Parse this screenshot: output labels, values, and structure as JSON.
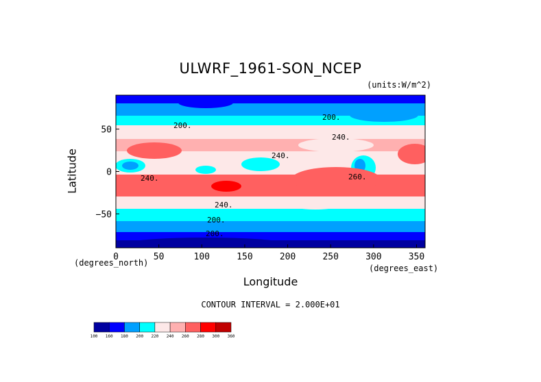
{
  "title": "ULWRF_1961-SON_NCEP",
  "units": "(units:W/m^2)",
  "xlabel": "Longitude",
  "ylabel": "Latitude",
  "x_unit": "(degrees_east)",
  "y_unit": "(degrees_north)",
  "contour_interval": "CONTOUR INTERVAL = 2.000E+01",
  "x_ticks": [
    "0",
    "50",
    "100",
    "150",
    "200",
    "250",
    "300",
    "350"
  ],
  "y_ticks": [
    "50",
    "0",
    "−50"
  ],
  "contour_labels": [
    "200.",
    "200.",
    "240.",
    "240.",
    "240.",
    "260.",
    "240.",
    "200.",
    "200."
  ],
  "chart_data": {
    "type": "heatmap",
    "title": "ULWRF_1961-SON_NCEP",
    "xlabel": "Longitude",
    "ylabel": "Latitude",
    "xlim": [
      0,
      360
    ],
    "ylim": [
      -90,
      90
    ],
    "x_ticks": [
      0,
      50,
      100,
      150,
      200,
      250,
      300,
      350
    ],
    "y_ticks": [
      50,
      0,
      -50
    ],
    "colorbar": {
      "levels": [
        "100",
        "160",
        "180",
        "200",
        "220",
        "240",
        "260",
        "280",
        "300",
        "360"
      ],
      "colors": [
        "#0000a0",
        "#0000ff",
        "#00a0ff",
        "#00ffff",
        "#fde8e8",
        "#ffb0b0",
        "#ff6060",
        "#ff0000",
        "#c00000"
      ]
    },
    "latitude_bands": [
      {
        "lat": [
          60,
          90
        ],
        "value": 190
      },
      {
        "lat": [
          45,
          60
        ],
        "value": 215
      },
      {
        "lat": [
          30,
          45
        ],
        "value": 235
      },
      {
        "lat": [
          15,
          30
        ],
        "value": 250
      },
      {
        "lat": [
          -10,
          15
        ],
        "value": 235
      },
      {
        "lat": [
          -30,
          -10
        ],
        "value": 265
      },
      {
        "lat": [
          -45,
          -30
        ],
        "value": 240
      },
      {
        "lat": [
          -60,
          -45
        ],
        "value": 210
      },
      {
        "lat": [
          -75,
          -60
        ],
        "value": 185
      },
      {
        "lat": [
          -90,
          -75
        ],
        "value": 160
      }
    ]
  }
}
